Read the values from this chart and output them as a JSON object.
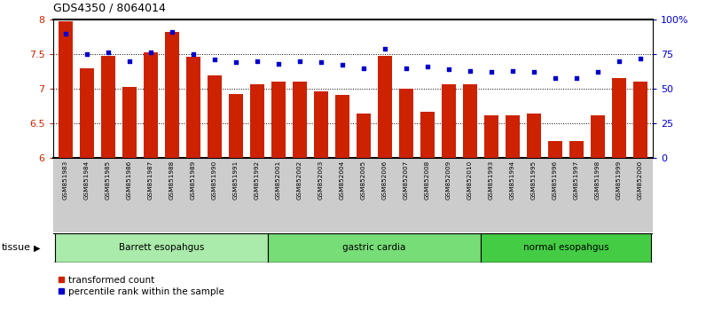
{
  "title": "GDS4350 / 8064014",
  "samples": [
    "GSM851983",
    "GSM851984",
    "GSM851985",
    "GSM851986",
    "GSM851987",
    "GSM851988",
    "GSM851989",
    "GSM851990",
    "GSM851991",
    "GSM851992",
    "GSM852001",
    "GSM852002",
    "GSM852003",
    "GSM852004",
    "GSM852005",
    "GSM852006",
    "GSM852007",
    "GSM852008",
    "GSM852009",
    "GSM852010",
    "GSM851993",
    "GSM851994",
    "GSM851995",
    "GSM851996",
    "GSM851997",
    "GSM851998",
    "GSM851999",
    "GSM852000"
  ],
  "bar_values": [
    7.97,
    7.3,
    7.47,
    7.03,
    7.53,
    7.82,
    7.46,
    7.19,
    6.92,
    7.07,
    7.1,
    7.1,
    6.96,
    6.91,
    6.64,
    7.48,
    7.0,
    6.67,
    7.06,
    7.06,
    6.62,
    6.62,
    6.64,
    6.24,
    6.25,
    6.62,
    7.15,
    7.1
  ],
  "dot_values": [
    90,
    75,
    76,
    70,
    76,
    91,
    75,
    71,
    69,
    70,
    68,
    70,
    69,
    67,
    65,
    79,
    65,
    66,
    64,
    63,
    62,
    63,
    62,
    58,
    58,
    62,
    70,
    72
  ],
  "groups": [
    {
      "label": "Barrett esopahgus",
      "start": 0,
      "end": 9,
      "color": "#aaeaaa"
    },
    {
      "label": "gastric cardia",
      "start": 10,
      "end": 19,
      "color": "#77dd77"
    },
    {
      "label": "normal esopahgus",
      "start": 20,
      "end": 27,
      "color": "#44cc44"
    }
  ],
  "bar_color": "#cc2200",
  "dot_color": "#0000cc",
  "bar_bottom": 6.0,
  "ylim_left": [
    6.0,
    8.0
  ],
  "ylim_right": [
    0,
    100
  ],
  "yticks_left": [
    6.0,
    6.5,
    7.0,
    7.5,
    8.0
  ],
  "ytick_labels_left": [
    "6",
    "6.5",
    "7",
    "7.5",
    "8"
  ],
  "yticks_right": [
    0,
    25,
    50,
    75,
    100
  ],
  "ytick_labels_right": [
    "0",
    "25",
    "50",
    "75",
    "100%"
  ],
  "grid_values": [
    6.5,
    7.0,
    7.5
  ],
  "legend": [
    {
      "label": "transformed count",
      "color": "#cc2200",
      "marker": "s"
    },
    {
      "label": "percentile rank within the sample",
      "color": "#0000cc",
      "marker": "s"
    }
  ],
  "xtick_bg": "#cccccc",
  "tissue_arrow": "▶"
}
